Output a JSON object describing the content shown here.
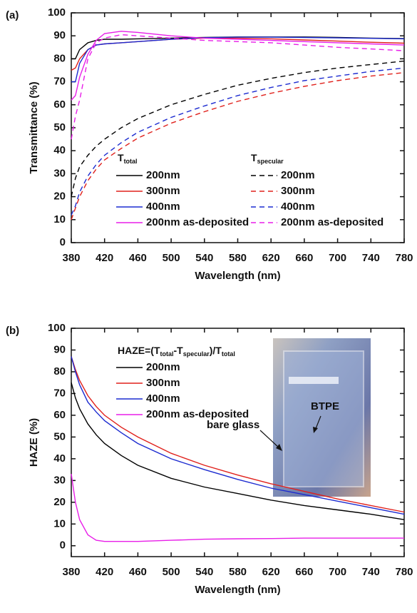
{
  "chart_data": [
    {
      "type": "line",
      "panel_label": "(a)",
      "x_label": "Wavelength (nm)",
      "y_label": "Transmittance (%)",
      "x": [
        380,
        385,
        390,
        400,
        410,
        420,
        440,
        460,
        500,
        540,
        580,
        620,
        660,
        700,
        740,
        780
      ],
      "xlim": [
        380,
        780
      ],
      "xticks": [
        380,
        420,
        460,
        500,
        540,
        580,
        620,
        660,
        700,
        740,
        780
      ],
      "ylim": [
        0,
        100
      ],
      "yticks": [
        0,
        10,
        20,
        30,
        40,
        50,
        60,
        70,
        80,
        90,
        100
      ],
      "legend_titles": [
        [
          "T",
          "total"
        ],
        [
          "T",
          "specular"
        ]
      ],
      "series": [
        {
          "name": "200nm",
          "color": "#000000",
          "dash": false,
          "values": [
            80,
            80,
            84,
            87,
            88,
            88.5,
            88.5,
            88.7,
            89,
            89.3,
            89.5,
            89.5,
            89.5,
            89.3,
            89,
            88.8
          ]
        },
        {
          "name": "300nm",
          "color": "#e0201b",
          "dash": false,
          "values": [
            75,
            76,
            80,
            84,
            86,
            86.5,
            87,
            87.5,
            88.5,
            89,
            89,
            88.7,
            88.2,
            87.7,
            87.2,
            86.8
          ]
        },
        {
          "name": "400nm",
          "color": "#1c2bd0",
          "dash": false,
          "values": [
            70,
            70,
            78,
            84,
            86,
            86.5,
            87,
            87.5,
            88.5,
            89.2,
            89.4,
            89.4,
            89.3,
            89.1,
            88.9,
            88.7
          ]
        },
        {
          "name": "200nm as-deposited",
          "color": "#e81ee8",
          "dash": false,
          "values": [
            62,
            64,
            72,
            82,
            88,
            91,
            92,
            91.5,
            90,
            89,
            88.5,
            88,
            87.5,
            87,
            86.5,
            86
          ]
        },
        {
          "name": "200nm",
          "color": "#000000",
          "dash": true,
          "values": [
            20,
            28,
            33,
            38,
            42,
            45,
            50,
            54,
            60,
            64.5,
            68.5,
            71.5,
            74,
            76,
            77.5,
            79
          ]
        },
        {
          "name": "300nm",
          "color": "#e0201b",
          "dash": true,
          "values": [
            10,
            15,
            20,
            27,
            32,
            36,
            41,
            45.5,
            52,
            57,
            61.5,
            65,
            68,
            70.5,
            72.5,
            74
          ]
        },
        {
          "name": "400nm",
          "color": "#1c2bd0",
          "dash": true,
          "values": [
            12,
            16,
            22,
            29,
            34,
            38,
            43.5,
            48,
            54.5,
            59.5,
            64,
            67.5,
            70.5,
            72.5,
            74.5,
            76
          ]
        },
        {
          "name": "200nm as-deposited",
          "color": "#e81ee8",
          "dash": true,
          "values": [
            45,
            55,
            62,
            80,
            87,
            89,
            90.5,
            90,
            89,
            88,
            87.5,
            87,
            86,
            85,
            84.3,
            83.5
          ]
        }
      ]
    },
    {
      "type": "line",
      "panel_label": "(b)",
      "x_label": "Wavelength (nm)",
      "y_label": "HAZE (%)",
      "x": [
        380,
        385,
        390,
        400,
        410,
        420,
        440,
        460,
        500,
        540,
        580,
        620,
        660,
        700,
        740,
        780
      ],
      "xlim": [
        380,
        780
      ],
      "xticks": [
        380,
        420,
        460,
        500,
        540,
        580,
        620,
        660,
        700,
        740,
        780
      ],
      "ylim": [
        -5,
        100
      ],
      "yticks": [
        0,
        10,
        20,
        30,
        40,
        50,
        60,
        70,
        80,
        90,
        100
      ],
      "legend_titles": [
        [
          "HAZE=(T",
          "total",
          "-T",
          "specular",
          ")/T",
          "total"
        ]
      ],
      "annotations": [
        "BTPE",
        "bare glass"
      ],
      "series": [
        {
          "name": "200nm",
          "color": "#000000",
          "dash": false,
          "values": [
            75,
            68,
            63,
            56,
            51,
            47,
            41.5,
            37,
            31,
            27,
            24,
            21,
            18.5,
            16.5,
            14.5,
            12
          ]
        },
        {
          "name": "300nm",
          "color": "#e0201b",
          "dash": false,
          "values": [
            87,
            81,
            76,
            69,
            64,
            60,
            54.5,
            50,
            42.5,
            37,
            32.5,
            28.5,
            25,
            21.5,
            18.5,
            15.5
          ]
        },
        {
          "name": "400nm",
          "color": "#1c2bd0",
          "dash": false,
          "values": [
            87,
            80,
            74,
            66,
            61.5,
            57.5,
            52,
            47,
            40,
            35,
            30.5,
            26.5,
            23.5,
            20.5,
            17.5,
            14.5
          ]
        },
        {
          "name": "200nm as-deposited",
          "color": "#e81ee8",
          "dash": false,
          "values": [
            33,
            20,
            12,
            5,
            2.5,
            2,
            2,
            2,
            2.5,
            3,
            3.2,
            3.3,
            3.5,
            3.5,
            3.5,
            3.5
          ]
        }
      ]
    }
  ]
}
